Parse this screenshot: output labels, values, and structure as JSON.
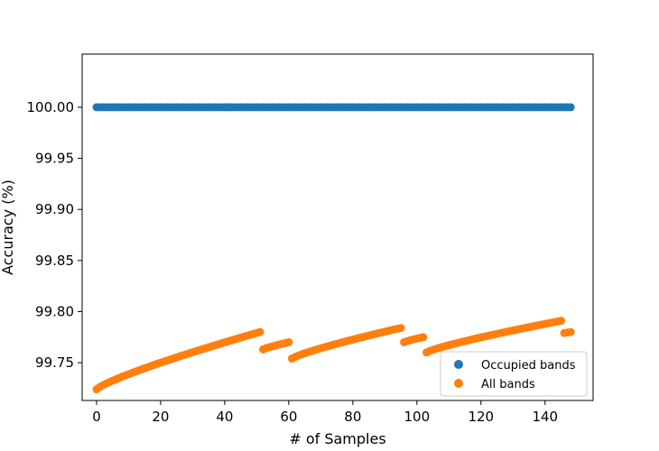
{
  "chart_data": {
    "type": "scatter",
    "xlabel": "# of Samples",
    "ylabel": "Accuracy (%)",
    "xlim": [
      -4.5,
      155
    ],
    "ylim": [
      99.713,
      100.052
    ],
    "xticks": [
      0,
      20,
      40,
      60,
      80,
      100,
      120,
      140
    ],
    "yticks": [
      99.75,
      99.8,
      99.85,
      99.9,
      99.95,
      100.0
    ],
    "ytick_labels": [
      "99.75",
      "99.80",
      "99.85",
      "99.90",
      "99.95",
      "100.00"
    ],
    "grid": false,
    "legend_position": "lower-right",
    "series": [
      {
        "name": "Occupied bands",
        "color": "#1f77b4",
        "segments": [
          {
            "x_start": 0,
            "x_end": 148,
            "y_start": 100.0,
            "y_end": 100.0
          }
        ]
      },
      {
        "name": "All bands",
        "color": "#ff7f0e",
        "segments": [
          {
            "x_start": 0,
            "x_end": 51,
            "y_start": 99.724,
            "y_end": 99.78
          },
          {
            "x_start": 52,
            "x_end": 60,
            "y_start": 99.763,
            "y_end": 99.77
          },
          {
            "x_start": 61,
            "x_end": 95,
            "y_start": 99.754,
            "y_end": 99.784
          },
          {
            "x_start": 96,
            "x_end": 102,
            "y_start": 99.77,
            "y_end": 99.775
          },
          {
            "x_start": 103,
            "x_end": 145,
            "y_start": 99.76,
            "y_end": 99.791
          },
          {
            "x_start": 146,
            "x_end": 148,
            "y_start": 99.779,
            "y_end": 99.78
          }
        ]
      }
    ]
  }
}
